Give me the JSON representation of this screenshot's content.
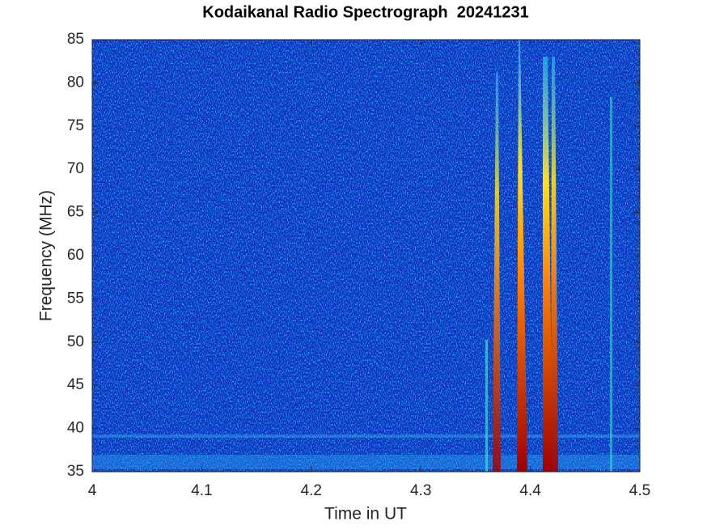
{
  "chart_data": {
    "type": "spectrogram",
    "title": "Kodaikanal Radio Spectrograph  20241231",
    "x_label": "Time in UT",
    "y_label": "Frequency (MHz)",
    "xlim": [
      4,
      4.5
    ],
    "xticks": [
      4,
      4.1,
      4.2,
      4.3,
      4.4,
      4.5
    ],
    "ylim": [
      35,
      85
    ],
    "yticks": [
      35,
      40,
      45,
      50,
      55,
      60,
      65,
      70,
      75,
      80,
      85
    ]
  }
}
